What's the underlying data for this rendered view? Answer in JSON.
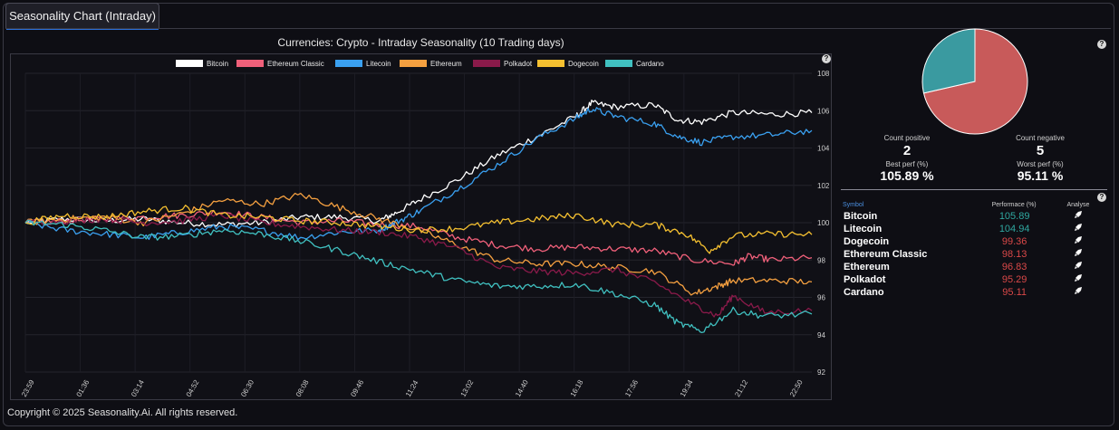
{
  "tab": {
    "label": "Seasonality Chart (Intraday)"
  },
  "chart_title": "Currencies: Crypto - Intraday Seasonality (10 Trading days)",
  "watermark": "Seasonality.Ai",
  "help_icon": "?",
  "footer": "Copyright © 2025 Seasonality.Ai. All rights reserved.",
  "chart_data": {
    "type": "line",
    "title": "Currencies: Crypto - Intraday Seasonality (10 Trading days)",
    "xlabel": "",
    "ylabel": "",
    "ylim": [
      92,
      108
    ],
    "yticks": [
      "92",
      "94",
      "96",
      "98",
      "100",
      "102",
      "104",
      "106",
      "108"
    ],
    "xticks": [
      "23:59",
      "01:36",
      "03:14",
      "04:52",
      "06:30",
      "08:08",
      "09:46",
      "11:24",
      "13:02",
      "14:40",
      "16:18",
      "17:56",
      "19:34",
      "21:12",
      "22:50"
    ],
    "grid": true,
    "legend_position": "top",
    "series": [
      {
        "name": "Bitcoin",
        "color": "#ffffff",
        "points": [
          [
            0,
            100
          ],
          [
            5,
            100.2
          ],
          [
            10,
            100.1
          ],
          [
            15,
            100.2
          ],
          [
            20,
            100
          ],
          [
            25,
            99.9
          ],
          [
            30,
            100
          ],
          [
            35,
            100.3
          ],
          [
            40,
            100.3
          ],
          [
            45,
            100.1
          ],
          [
            47,
            100.5
          ],
          [
            50,
            101.2
          ],
          [
            55,
            102.3
          ],
          [
            60,
            103.6
          ],
          [
            65,
            104.6
          ],
          [
            70,
            105.7
          ],
          [
            72,
            106.4
          ],
          [
            75,
            106.2
          ],
          [
            80,
            106.3
          ],
          [
            83,
            105.5
          ],
          [
            86,
            105.4
          ],
          [
            90,
            105.9
          ],
          [
            95,
            105.8
          ],
          [
            100,
            105.89
          ]
        ]
      },
      {
        "name": "Ethereum Classic",
        "color": "#f0607a",
        "points": [
          [
            0,
            100
          ],
          [
            5,
            100.1
          ],
          [
            10,
            100.2
          ],
          [
            15,
            100.3
          ],
          [
            20,
            100.4
          ],
          [
            25,
            100.6
          ],
          [
            30,
            100.3
          ],
          [
            35,
            100
          ],
          [
            40,
            100.1
          ],
          [
            45,
            99.9
          ],
          [
            50,
            99.8
          ],
          [
            55,
            99.2
          ],
          [
            60,
            98.8
          ],
          [
            65,
            98.6
          ],
          [
            70,
            98.7
          ],
          [
            75,
            98.6
          ],
          [
            80,
            98.5
          ],
          [
            85,
            98.0
          ],
          [
            90,
            97.8
          ],
          [
            92,
            98.2
          ],
          [
            95,
            98.0
          ],
          [
            100,
            98.13
          ]
        ]
      },
      {
        "name": "Litecoin",
        "color": "#3aa0f0",
        "points": [
          [
            0,
            100
          ],
          [
            5,
            99.6
          ],
          [
            10,
            99.4
          ],
          [
            15,
            99.2
          ],
          [
            20,
            99.5
          ],
          [
            25,
            99.8
          ],
          [
            30,
            99.6
          ],
          [
            35,
            99.2
          ],
          [
            40,
            99.5
          ],
          [
            45,
            99.6
          ],
          [
            47,
            100.0
          ],
          [
            50,
            100.6
          ],
          [
            55,
            101.8
          ],
          [
            60,
            103.1
          ],
          [
            65,
            104.5
          ],
          [
            70,
            105.6
          ],
          [
            72,
            106.1
          ],
          [
            75,
            105.7
          ],
          [
            80,
            105.3
          ],
          [
            83,
            104.6
          ],
          [
            86,
            104.3
          ],
          [
            90,
            104.6
          ],
          [
            95,
            104.7
          ],
          [
            100,
            104.94
          ]
        ]
      },
      {
        "name": "Ethereum",
        "color": "#f5a040",
        "points": [
          [
            0,
            100
          ],
          [
            5,
            100.2
          ],
          [
            10,
            100.3
          ],
          [
            15,
            100.0
          ],
          [
            20,
            100.5
          ],
          [
            25,
            101.2
          ],
          [
            30,
            101.0
          ],
          [
            35,
            101.5
          ],
          [
            40,
            100.8
          ],
          [
            45,
            100.2
          ],
          [
            50,
            99.6
          ],
          [
            55,
            98.8
          ],
          [
            60,
            98.0
          ],
          [
            65,
            97.8
          ],
          [
            70,
            97.8
          ],
          [
            75,
            97.6
          ],
          [
            80,
            97.4
          ],
          [
            85,
            96.2
          ],
          [
            88,
            96.6
          ],
          [
            90,
            96.9
          ],
          [
            95,
            96.9
          ],
          [
            100,
            96.83
          ]
        ]
      },
      {
        "name": "Polkadot",
        "color": "#8a1a4a",
        "points": [
          [
            0,
            100
          ],
          [
            5,
            100.1
          ],
          [
            10,
            100.2
          ],
          [
            15,
            100.0
          ],
          [
            20,
            100.1
          ],
          [
            25,
            100.4
          ],
          [
            30,
            100.0
          ],
          [
            35,
            99.8
          ],
          [
            40,
            99.6
          ],
          [
            45,
            99.5
          ],
          [
            50,
            99.2
          ],
          [
            55,
            98.6
          ],
          [
            60,
            97.6
          ],
          [
            65,
            97.4
          ],
          [
            70,
            97.3
          ],
          [
            75,
            97.5
          ],
          [
            80,
            96.8
          ],
          [
            85,
            95.6
          ],
          [
            88,
            95.0
          ],
          [
            90,
            96.1
          ],
          [
            94,
            95.2
          ],
          [
            100,
            95.29
          ]
        ]
      },
      {
        "name": "Dogecoin",
        "color": "#f5c030",
        "points": [
          [
            0,
            100
          ],
          [
            5,
            100.4
          ],
          [
            10,
            100.3
          ],
          [
            15,
            100.6
          ],
          [
            20,
            100.8
          ],
          [
            25,
            100.4
          ],
          [
            30,
            100.3
          ],
          [
            35,
            100.1
          ],
          [
            40,
            100.0
          ],
          [
            45,
            99.8
          ],
          [
            50,
            99.6
          ],
          [
            55,
            99.7
          ],
          [
            60,
            100.0
          ],
          [
            65,
            100.2
          ],
          [
            70,
            100.4
          ],
          [
            75,
            99.9
          ],
          [
            80,
            99.9
          ],
          [
            84,
            99.4
          ],
          [
            87,
            98.5
          ],
          [
            90,
            99.3
          ],
          [
            95,
            99.4
          ],
          [
            100,
            99.36
          ]
        ]
      },
      {
        "name": "Cardano",
        "color": "#40c0c0",
        "points": [
          [
            0,
            100
          ],
          [
            5,
            99.9
          ],
          [
            10,
            99.6
          ],
          [
            15,
            99.2
          ],
          [
            20,
            99.3
          ],
          [
            25,
            99.6
          ],
          [
            30,
            99.4
          ],
          [
            35,
            99.0
          ],
          [
            40,
            98.5
          ],
          [
            45,
            97.9
          ],
          [
            50,
            97.4
          ],
          [
            55,
            96.9
          ],
          [
            60,
            96.6
          ],
          [
            65,
            96.6
          ],
          [
            70,
            96.7
          ],
          [
            75,
            96.2
          ],
          [
            80,
            95.6
          ],
          [
            83,
            94.6
          ],
          [
            86,
            94.2
          ],
          [
            90,
            95.3
          ],
          [
            94,
            95.0
          ],
          [
            100,
            95.11
          ]
        ]
      }
    ]
  },
  "pie": {
    "positive_share": 2,
    "negative_share": 5,
    "positive_color": "#3a9aa0",
    "negative_color": "#c85a5a"
  },
  "stats": {
    "count_positive_label": "Count positive",
    "count_positive": "2",
    "count_negative_label": "Count negative",
    "count_negative": "5",
    "best_perf_label": "Best perf (%)",
    "best_perf": "105.89 %",
    "worst_perf_label": "Worst perf (%)",
    "worst_perf": "95.11 %"
  },
  "table": {
    "headers": [
      "Symbol",
      "Performace (%)",
      "Analyse"
    ],
    "rows": [
      {
        "symbol": "Bitcoin",
        "perf": "105.89",
        "positive": true
      },
      {
        "symbol": "Litecoin",
        "perf": "104.94",
        "positive": true
      },
      {
        "symbol": "Dogecoin",
        "perf": "99.36",
        "positive": false
      },
      {
        "symbol": "Ethereum Classic",
        "perf": "98.13",
        "positive": false
      },
      {
        "symbol": "Ethereum",
        "perf": "96.83",
        "positive": false
      },
      {
        "symbol": "Polkadot",
        "perf": "95.29",
        "positive": false
      },
      {
        "symbol": "Cardano",
        "perf": "95.11",
        "positive": false
      }
    ],
    "analyse_icon": "rocket-icon"
  }
}
